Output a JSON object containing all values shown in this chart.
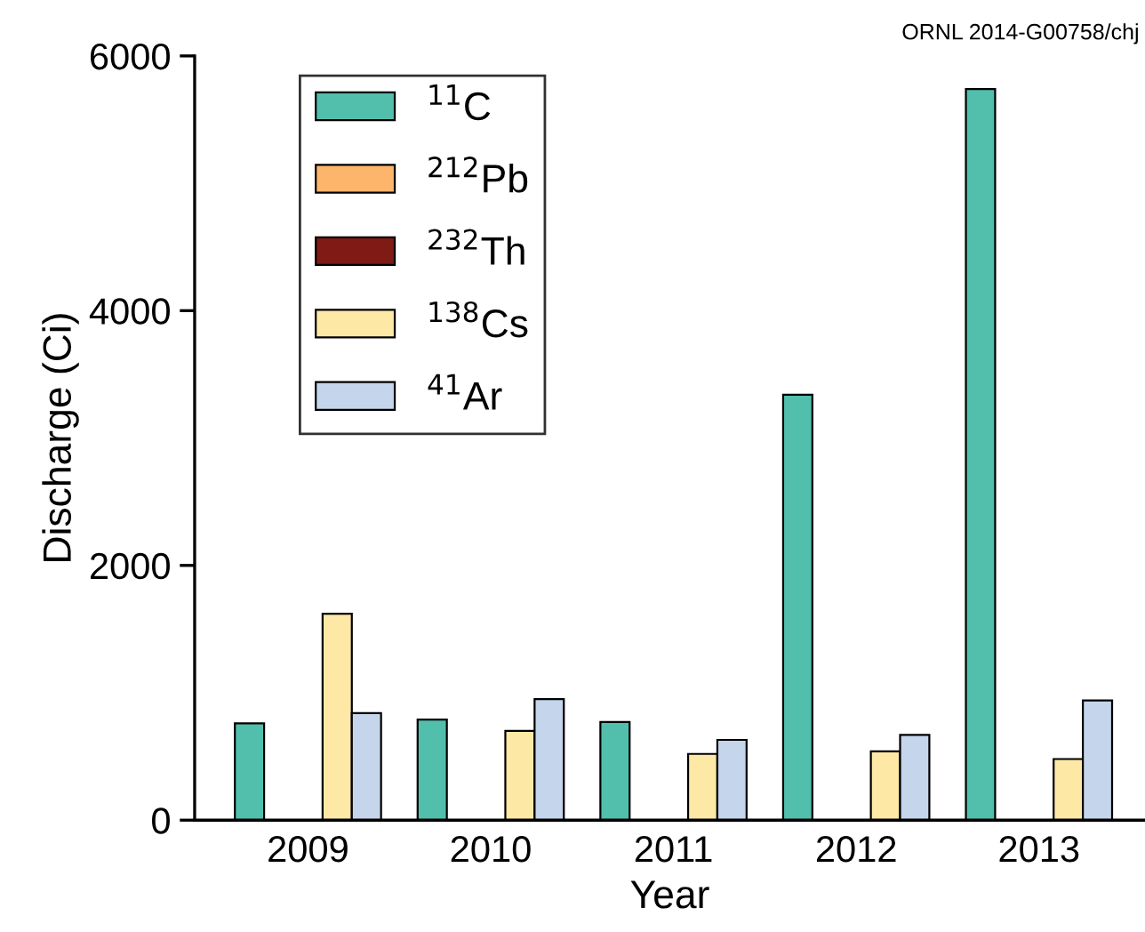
{
  "chart_data": {
    "type": "bar",
    "xlabel": "Year",
    "ylabel": "Discharge (Ci)",
    "categories": [
      "2009",
      "2010",
      "2011",
      "2012",
      "2013"
    ],
    "series": [
      {
        "name": "$^{11}$C",
        "color": "#52bfad",
        "values": [
          760,
          790,
          770,
          3340,
          5740
        ]
      },
      {
        "name": "$^{212}$Pb",
        "color": "#fdb46b",
        "values": [
          null,
          null,
          null,
          null,
          null
        ]
      },
      {
        "name": "$^{232}$Th",
        "color": "#7f1a14",
        "values": [
          null,
          null,
          null,
          null,
          null
        ]
      },
      {
        "name": "$^{138}$Cs",
        "color": "#fde8a6",
        "values": [
          1620,
          700,
          520,
          540,
          480
        ]
      },
      {
        "name": "$^{41}$Ar",
        "color": "#c5d6ec",
        "values": [
          840,
          950,
          630,
          670,
          940
        ]
      }
    ],
    "ylim": [
      0,
      6000
    ],
    "yticks": [
      0,
      2000,
      4000,
      6000
    ],
    "grid": false,
    "legend": "top left",
    "annotations": [
      "ORNL 2014-G00758/chj"
    ]
  }
}
